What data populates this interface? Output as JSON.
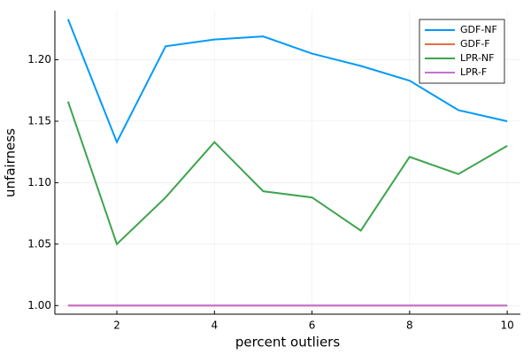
{
  "chart_data": {
    "type": "line",
    "x_label": "percent outliers",
    "y_label": "unfairness",
    "x": [
      1,
      2,
      3,
      4,
      5,
      6,
      7,
      8,
      9,
      10
    ],
    "series": [
      {
        "name": "GDF-NF",
        "color": "#009af9",
        "values": [
          1.233,
          1.133,
          1.211,
          1.2165,
          1.219,
          1.205,
          1.195,
          1.183,
          1.159,
          1.15
        ]
      },
      {
        "name": "GDF-F",
        "color": "#e26f46",
        "values": [
          1.0,
          1.0,
          1.0,
          1.0,
          1.0,
          1.0,
          1.0,
          1.0,
          1.0,
          1.0
        ]
      },
      {
        "name": "LPR-NF",
        "color": "#3da44d",
        "values": [
          1.166,
          1.05,
          1.088,
          1.133,
          1.093,
          1.088,
          1.061,
          1.121,
          1.107,
          1.13
        ]
      },
      {
        "name": "LPR-F",
        "color": "#c271d2",
        "values": [
          1.0,
          1.0,
          1.0,
          1.0,
          1.0,
          1.0,
          1.0,
          1.0,
          1.0,
          1.0
        ]
      }
    ],
    "xlim": [
      0.73,
      10.27
    ],
    "xticks": [
      2,
      4,
      6,
      8,
      10
    ],
    "ylim": [
      0.993,
      1.24
    ],
    "yticks": [
      {
        "value": 1.0,
        "label": "1.00"
      },
      {
        "value": 1.05,
        "label": "1.05"
      },
      {
        "value": 1.1,
        "label": "1.10"
      },
      {
        "value": 1.15,
        "label": "1.15"
      },
      {
        "value": 1.2,
        "label": "1.20"
      }
    ],
    "grid": true,
    "legend": "top-right"
  }
}
